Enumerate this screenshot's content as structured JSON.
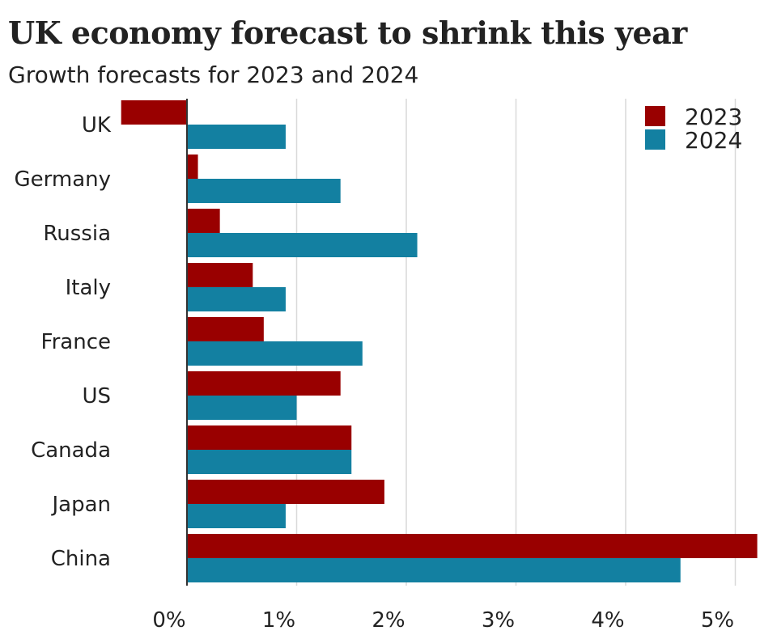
{
  "header": {
    "title": "UK economy forecast to shrink this year",
    "subtitle": "Growth forecasts for 2023 and 2024"
  },
  "colors": {
    "series_2023": "#990000",
    "series_2024": "#1380A1",
    "grid": "#d9d9d9",
    "text": "#222222"
  },
  "chart_data": {
    "type": "bar",
    "orientation": "horizontal",
    "title": "UK economy forecast to shrink this year",
    "subtitle": "Growth forecasts for 2023 and 2024",
    "xlabel": "",
    "ylabel": "",
    "xlim": [
      -0.6,
      5.2
    ],
    "grid": true,
    "legend_position": "top-right",
    "categories": [
      "UK",
      "Germany",
      "Russia",
      "Italy",
      "France",
      "US",
      "Canada",
      "Japan",
      "China"
    ],
    "x_ticks": [
      0,
      1,
      2,
      3,
      4,
      5
    ],
    "x_tick_labels": [
      "0%",
      "1%",
      "2%",
      "3%",
      "4%",
      "5%"
    ],
    "series": [
      {
        "name": "2023",
        "color": "#990000",
        "values": [
          -0.6,
          0.1,
          0.3,
          0.6,
          0.7,
          1.4,
          1.5,
          1.8,
          5.2
        ]
      },
      {
        "name": "2024",
        "color": "#1380A1",
        "values": [
          0.9,
          1.4,
          2.1,
          0.9,
          1.6,
          1.0,
          1.5,
          0.9,
          4.5
        ]
      }
    ]
  }
}
